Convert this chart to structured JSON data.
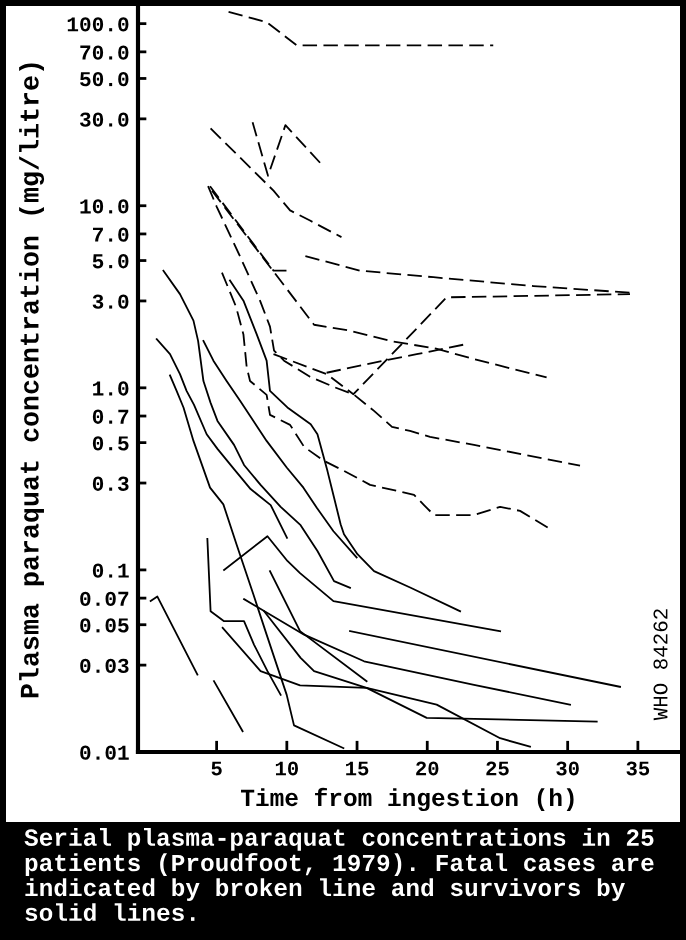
{
  "chart_data": {
    "type": "line",
    "xlabel": "Time from ingestion (h)",
    "ylabel": "Plasma paraquat concentration (mg/litre)",
    "annotations": [
      "Serial plasma-paraquat concentrations in 25 patients (Proudfoot, 1979). Fatal cases are indicated by broken line and survivors by solid lines.",
      "WHO 84262"
    ],
    "log": "y",
    "xlim": [
      -0.6,
      38
    ],
    "ylim": [
      0.01,
      125
    ],
    "xticks": [
      5,
      10,
      15,
      20,
      25,
      30,
      35
    ],
    "yticks": [
      0.01,
      0.03,
      0.05,
      0.07,
      0.1,
      0.3,
      0.5,
      0.7,
      {
        "value": 1,
        "label": "1.0"
      },
      {
        "value": 3,
        "label": "3.0"
      },
      {
        "value": 5,
        "label": "5.0"
      },
      {
        "value": 7,
        "label": "7.0"
      },
      {
        "value": 10,
        "label": "10.0"
      },
      {
        "value": 30,
        "label": "30.0"
      },
      {
        "value": 50,
        "label": "50.0"
      },
      {
        "value": 70,
        "label": "70.0"
      },
      {
        "value": 100,
        "label": "100.0"
      }
    ],
    "series": [
      {
        "color": "#000000",
        "line_style": "dashed",
        "x": [
          5.85,
          8.56,
          10.7,
          24.7
        ],
        "values": [
          116,
          102,
          76,
          76
        ]
      },
      {
        "color": "#000000",
        "line_style": "dashed",
        "x": [
          7.56,
          8.66,
          9.9,
          12.65
        ],
        "values": [
          28.7,
          14.6,
          27.7,
          16.3
        ]
      },
      {
        "color": "#000000",
        "line_style": "dashed",
        "x": [
          4.57,
          9.05,
          10.23,
          11.65,
          13.89
        ],
        "values": [
          26.6,
          12.1,
          9.43,
          8.29,
          6.72
        ]
      },
      {
        "color": "#000000",
        "line_style": "dashed",
        "x": [
          11.32,
          15.21,
          20.44,
          27.56,
          34.44
        ],
        "values": [
          5.29,
          4.4,
          4.05,
          3.62,
          3.33
        ]
      },
      {
        "color": "#000000",
        "line_style": "dashed",
        "x": [
          4.67,
          11.94,
          14.5,
          17.35,
          20.63,
          23.76,
          28.5
        ],
        "values": [
          12.1,
          2.22,
          2.06,
          1.81,
          1.64,
          1.41,
          1.14
        ]
      },
      {
        "color": "#000000",
        "line_style": "dashed",
        "x": [
          4.53,
          9.05,
          10.23
        ],
        "values": [
          12.8,
          4.4,
          4.4
        ]
      },
      {
        "color": "#000000",
        "line_style": "dashed",
        "x": [
          4.39,
          5.0,
          6.67,
          8.09,
          8.8,
          9.09,
          9.8,
          11.65,
          13.36,
          14.74,
          16.21,
          17.49,
          18.77,
          20.2,
          23.33,
          30.88
        ],
        "values": [
          12.8,
          9.9,
          5.26,
          3.01,
          2.17,
          1.6,
          1.41,
          1.15,
          1.01,
          0.922,
          0.747,
          0.61,
          0.58,
          0.538,
          0.486,
          0.374
        ]
      },
      {
        "color": "#000000",
        "line_style": "dashed",
        "x": [
          9.05,
          12.83,
          14.74,
          21.38,
          34.44
        ],
        "values": [
          1.53,
          1.19,
          0.922,
          3.14,
          3.27
        ]
      },
      {
        "color": "#000000",
        "line_style": "dashed",
        "x": [
          12.83,
          16.88,
          19.25,
          22.81
        ],
        "values": [
          1.21,
          1.41,
          1.53,
          1.74
        ]
      },
      {
        "color": "#000000",
        "line_style": "dashed",
        "x": [
          5.38,
          6.38,
          6.91,
          7.14,
          7.38,
          8.56,
          8.8,
          10.23,
          11.23,
          12.65,
          14.07,
          15.93,
          17.92,
          19.06,
          19.77,
          20.48,
          23.33,
          25.19,
          26.61,
          28.75
        ],
        "values": [
          4.29,
          2.79,
          1.96,
          1.3,
          1.09,
          0.915,
          0.71,
          0.626,
          0.474,
          0.397,
          0.35,
          0.293,
          0.271,
          0.258,
          0.227,
          0.2,
          0.2,
          0.222,
          0.211,
          0.168
        ]
      },
      {
        "color": "#000000",
        "line_style": "solid",
        "x": [
          1.21,
          2.39,
          3.35,
          3.68,
          4.06,
          4.57,
          5.06,
          6.24,
          6.95,
          8.13,
          9.56,
          10.98,
          12.18,
          13.36,
          14.5
        ],
        "values": [
          4.4,
          3.27,
          2.34,
          1.81,
          1.09,
          0.827,
          0.658,
          0.486,
          0.377,
          0.293,
          0.222,
          0.176,
          0.127,
          0.0868,
          0.0798
        ]
      },
      {
        "color": "#000000",
        "line_style": "solid",
        "x": [
          0.73,
          1.68,
          2.39,
          2.86,
          3.39,
          4.29,
          5.06,
          6.24,
          7.42,
          8.85,
          10.01
        ],
        "values": [
          1.85,
          1.53,
          1.19,
          0.963,
          0.806,
          0.556,
          0.462,
          0.358,
          0.278,
          0.227,
          0.15
        ]
      },
      {
        "color": "#000000",
        "line_style": "solid",
        "x": [
          1.68,
          2.15,
          2.64,
          3.35,
          4.53,
          5.48,
          6.42,
          7.62,
          8.56,
          9.99,
          10.51,
          14.03
        ],
        "values": [
          1.17,
          0.963,
          0.78,
          0.511,
          0.283,
          0.229,
          0.138,
          0.0732,
          0.0441,
          0.0206,
          0.014,
          0.0105
        ]
      },
      {
        "color": "#000000",
        "line_style": "solid",
        "x": [
          4.06,
          4.77,
          5.71,
          6.67,
          8.56,
          9.99,
          11.18,
          12.12,
          13.32,
          14.97
        ],
        "values": [
          1.81,
          1.41,
          1.09,
          0.848,
          0.511,
          0.365,
          0.283,
          0.22,
          0.163,
          0.117
        ]
      },
      {
        "color": "#000000",
        "line_style": "solid",
        "x": [
          5.95,
          6.91,
          7.85,
          8.56,
          8.8,
          10.04,
          11.7,
          12.18,
          12.89,
          13.36,
          13.83,
          14.07,
          15.03,
          16.21,
          18.82,
          22.34
        ],
        "values": [
          3.88,
          3.01,
          1.97,
          1.41,
          0.963,
          0.78,
          0.631,
          0.556,
          0.35,
          0.25,
          0.178,
          0.157,
          0.122,
          0.0985,
          0.0798,
          0.0593
        ]
      },
      {
        "color": "#000000",
        "line_style": "solid",
        "x": [
          4.34,
          4.57,
          5.53,
          6.95,
          7.66,
          8.62,
          9.56
        ],
        "values": [
          0.148,
          0.0593,
          0.0523,
          0.0523,
          0.0389,
          0.0278,
          0.0206
        ]
      },
      {
        "color": "#000000",
        "line_style": "solid",
        "x": [
          5.53,
          8.62,
          10.04,
          10.94,
          13.32,
          25.19
        ],
        "values": [
          0.1,
          0.153,
          0.112,
          0.096,
          0.0674,
          0.0461
        ]
      },
      {
        "color": "#000000",
        "line_style": "solid",
        "x": [
          8.8,
          10.94,
          15.68
        ],
        "values": [
          0.0985,
          0.0461,
          0.0245
        ]
      },
      {
        "color": "#000000",
        "line_style": "solid",
        "x": [
          6.95,
          11.23,
          15.5,
          23.33,
          30.17
        ],
        "values": [
          0.0691,
          0.0441,
          0.0315,
          0.0234,
          0.0182
        ]
      },
      {
        "color": "#000000",
        "line_style": "solid",
        "x": [
          14.5,
          33.73
        ],
        "values": [
          0.0461,
          0.0228
        ]
      },
      {
        "color": "#000000",
        "line_style": "solid",
        "x": [
          8.38,
          10.98,
          11.94,
          15.68,
          19.96,
          32.07
        ],
        "values": [
          0.0593,
          0.0329,
          0.0278,
          0.0225,
          0.0154,
          0.0147
        ]
      },
      {
        "color": "#000000",
        "line_style": "solid",
        "x": [
          5.43,
          8.13,
          10.94,
          15.68,
          20.67,
          25.19,
          27.32
        ],
        "values": [
          0.0481,
          0.0278,
          0.0232,
          0.0225,
          0.0182,
          0.0119,
          0.0107
        ]
      },
      {
        "color": "#000000",
        "line_style": "solid",
        "x": [
          0.3,
          0.78,
          3.63
        ],
        "values": [
          0.0674,
          0.0714,
          0.0266
        ]
      },
      {
        "color": "#000000",
        "line_style": "solid",
        "x": [
          4.81,
          6.85
        ],
        "values": [
          0.0245,
          0.013
        ]
      }
    ]
  }
}
